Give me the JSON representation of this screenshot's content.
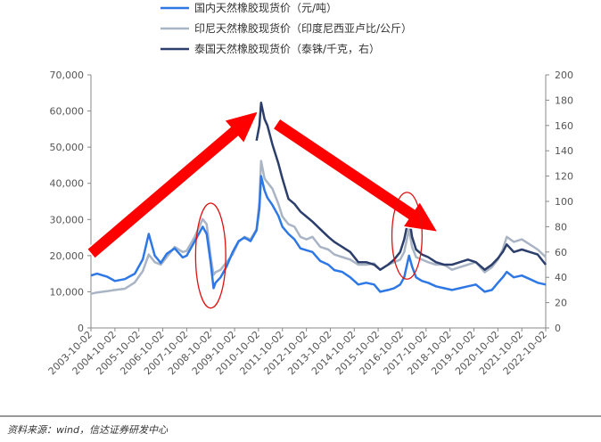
{
  "chart_data": {
    "type": "line",
    "title": "",
    "source_note": "资料来源：wind，信达证券研发中心",
    "x_ticks": [
      "2003-10-02",
      "2004-10-02",
      "2005-10-02",
      "2006-10-02",
      "2007-10-02",
      "2008-10-02",
      "2009-10-02",
      "2010-10-02",
      "2011-10-02",
      "2012-10-02",
      "2013-10-02",
      "2014-10-02",
      "2015-10-02",
      "2016-10-02",
      "2017-10-02",
      "2018-10-02",
      "2019-10-02",
      "2020-10-02",
      "2021-10-02",
      "2022-10-02"
    ],
    "xlim": [
      "2003-10-02",
      "2022-10-02"
    ],
    "y_left": {
      "ylim": [
        0,
        70000
      ],
      "ticks": [
        0,
        10000,
        20000,
        30000,
        40000,
        50000,
        60000,
        70000
      ],
      "tick_labels": [
        "0",
        "10,000",
        "20,000",
        "30,000",
        "40,000",
        "50,000",
        "60,000",
        "70,000"
      ]
    },
    "y_right": {
      "ylim": [
        0,
        200
      ],
      "ticks": [
        0,
        20,
        40,
        60,
        80,
        100,
        120,
        140,
        160,
        180,
        200
      ],
      "tick_labels": [
        "0",
        "20",
        "40",
        "60",
        "80",
        "100",
        "120",
        "140",
        "160",
        "180",
        "200"
      ]
    },
    "grid": false,
    "legend_position": "top",
    "series": [
      {
        "name": "国内天然橡胶现货价（元/吨）",
        "axis": "left",
        "color": "#2e78e6",
        "x": [
          "2003-10-02",
          "2004-01-02",
          "2004-06-02",
          "2004-10-02",
          "2005-03-02",
          "2005-08-02",
          "2005-12-02",
          "2006-03-02",
          "2006-06-02",
          "2006-09-02",
          "2006-12-02",
          "2007-04-02",
          "2007-08-02",
          "2007-10-02",
          "2008-02-02",
          "2008-06-02",
          "2008-08-02",
          "2008-10-02",
          "2008-11-15",
          "2008-12-15",
          "2009-03-02",
          "2009-06-02",
          "2009-09-02",
          "2009-12-02",
          "2010-03-02",
          "2010-06-02",
          "2010-09-02",
          "2010-10-15",
          "2010-11-10",
          "2011-01-02",
          "2011-02-15",
          "2011-05-02",
          "2011-08-02",
          "2011-10-02",
          "2012-01-02",
          "2012-04-02",
          "2012-07-02",
          "2012-10-02",
          "2013-01-02",
          "2013-05-02",
          "2013-09-02",
          "2013-12-02",
          "2014-04-02",
          "2014-08-02",
          "2014-12-02",
          "2015-04-02",
          "2015-08-02",
          "2015-11-02",
          "2016-03-02",
          "2016-06-02",
          "2016-09-02",
          "2016-11-02",
          "2017-01-15",
          "2017-03-02",
          "2017-05-02",
          "2017-08-02",
          "2017-11-02",
          "2018-03-02",
          "2018-07-02",
          "2018-11-02",
          "2019-03-02",
          "2019-07-02",
          "2019-11-02",
          "2020-03-15",
          "2020-07-02",
          "2020-10-02",
          "2020-12-15",
          "2021-02-15",
          "2021-06-02",
          "2021-10-02",
          "2022-02-02",
          "2022-06-02",
          "2022-10-02"
        ],
        "values": [
          14500,
          15000,
          14200,
          13000,
          13500,
          15000,
          19000,
          26000,
          20000,
          18000,
          20500,
          22000,
          19500,
          20000,
          24000,
          28000,
          26000,
          18000,
          11000,
          12500,
          14000,
          17000,
          21000,
          24000,
          25000,
          24000,
          27000,
          33000,
          42000,
          38000,
          36000,
          34000,
          31000,
          28000,
          26000,
          24500,
          22000,
          21500,
          21000,
          18500,
          17500,
          16000,
          15500,
          14000,
          12000,
          12500,
          12000,
          10000,
          10500,
          11000,
          12000,
          14000,
          20000,
          17000,
          14000,
          13000,
          12500,
          11500,
          11000,
          10500,
          11000,
          11500,
          12000,
          10000,
          10500,
          12500,
          14000,
          15500,
          14000,
          14500,
          13500,
          12500,
          12000
        ]
      },
      {
        "name": "印尼天然橡胶现货价（印度尼西亚卢比/公斤）",
        "axis": "right",
        "color": "#a9b4c4",
        "x": [
          "2003-10-02",
          "2004-01-02",
          "2004-06-02",
          "2004-10-02",
          "2005-03-02",
          "2005-08-02",
          "2005-12-02",
          "2006-03-02",
          "2006-06-02",
          "2006-09-02",
          "2006-12-02",
          "2007-04-02",
          "2007-08-02",
          "2007-10-02",
          "2008-02-02",
          "2008-06-02",
          "2008-08-02",
          "2008-10-02",
          "2008-11-15",
          "2008-12-15",
          "2009-03-02",
          "2009-06-02",
          "2009-09-02",
          "2009-12-02",
          "2010-03-02",
          "2010-06-02",
          "2010-09-02",
          "2010-10-15",
          "2010-11-10",
          "2011-01-02",
          "2011-02-15",
          "2011-05-02",
          "2011-08-02",
          "2011-10-02",
          "2012-01-02",
          "2012-04-02",
          "2012-07-02",
          "2012-10-02",
          "2013-01-02",
          "2013-05-02",
          "2013-09-02",
          "2013-12-02",
          "2014-04-02",
          "2014-08-02",
          "2014-12-02",
          "2015-04-02",
          "2015-08-02",
          "2015-11-02",
          "2016-03-02",
          "2016-06-02",
          "2016-09-02",
          "2016-11-02",
          "2017-01-15",
          "2017-03-02",
          "2017-05-02",
          "2017-08-02",
          "2017-11-02",
          "2018-03-02",
          "2018-07-02",
          "2018-11-02",
          "2019-03-02",
          "2019-07-02",
          "2019-11-02",
          "2020-03-15",
          "2020-07-02",
          "2020-10-02",
          "2020-12-15",
          "2021-02-15",
          "2021-06-02",
          "2021-10-02",
          "2022-02-02",
          "2022-06-02",
          "2022-10-02"
        ],
        "values": [
          27,
          28,
          29,
          30,
          31,
          36,
          45,
          58,
          52,
          50,
          56,
          64,
          60,
          61,
          72,
          86,
          82,
          56,
          42,
          44,
          46,
          52,
          58,
          68,
          72,
          70,
          78,
          100,
          132,
          118,
          115,
          110,
          98,
          88,
          82,
          80,
          72,
          70,
          72,
          64,
          62,
          58,
          56,
          54,
          50,
          50,
          51,
          46,
          50,
          52,
          54,
          60,
          78,
          64,
          56,
          54,
          52,
          50,
          50,
          46,
          48,
          50,
          52,
          44,
          48,
          54,
          62,
          72,
          68,
          70,
          66,
          62,
          56
        ]
      },
      {
        "name": "泰国天然橡胶现货价（泰铢/千克，右）",
        "axis": "right",
        "color": "#2c3e6b",
        "x": [
          "2010-09-02",
          "2010-10-15",
          "2010-11-10",
          "2011-01-02",
          "2011-02-15",
          "2011-05-02",
          "2011-08-02",
          "2011-10-02",
          "2012-01-02",
          "2012-04-02",
          "2012-07-02",
          "2012-10-02",
          "2013-01-02",
          "2013-05-02",
          "2013-09-02",
          "2013-12-02",
          "2014-04-02",
          "2014-08-02",
          "2014-12-02",
          "2015-04-02",
          "2015-08-02",
          "2015-11-02",
          "2016-03-02",
          "2016-06-02",
          "2016-09-02",
          "2016-11-02",
          "2017-01-15",
          "2017-03-02",
          "2017-05-02",
          "2017-08-02",
          "2017-11-02",
          "2018-03-02",
          "2018-07-02",
          "2018-11-02",
          "2019-03-02",
          "2019-07-02",
          "2019-11-02",
          "2020-03-15",
          "2020-07-02",
          "2020-10-02",
          "2020-12-15",
          "2021-02-15",
          "2021-06-02",
          "2021-10-02",
          "2022-02-02",
          "2022-06-02",
          "2022-10-02"
        ],
        "values": [
          148,
          160,
          178,
          165,
          160,
          145,
          130,
          118,
          102,
          98,
          92,
          88,
          84,
          78,
          72,
          68,
          64,
          60,
          52,
          52,
          50,
          46,
          50,
          54,
          60,
          70,
          88,
          72,
          62,
          58,
          56,
          52,
          50,
          50,
          52,
          54,
          52,
          46,
          50,
          55,
          60,
          66,
          60,
          62,
          60,
          58,
          50
        ]
      }
    ],
    "annotations": [
      {
        "type": "arrow",
        "color": "#ff0000",
        "from": [
          "2003-10-02",
          20500
        ],
        "to": [
          "2010-10-02",
          60000
        ]
      },
      {
        "type": "arrow",
        "color": "#ff0000",
        "from": [
          "2011-07-02",
          56500
        ],
        "to": [
          "2018-04-02",
          26500
        ]
      },
      {
        "type": "ellipse",
        "color": "#e01010",
        "center": [
          "2008-10-02",
          20000
        ],
        "radius_days": 230,
        "radius_value": 14500
      },
      {
        "type": "ellipse",
        "color": "#e01010",
        "center": [
          "2016-12-15",
          25500
        ],
        "radius_days": 230,
        "radius_value": 12000
      }
    ]
  }
}
